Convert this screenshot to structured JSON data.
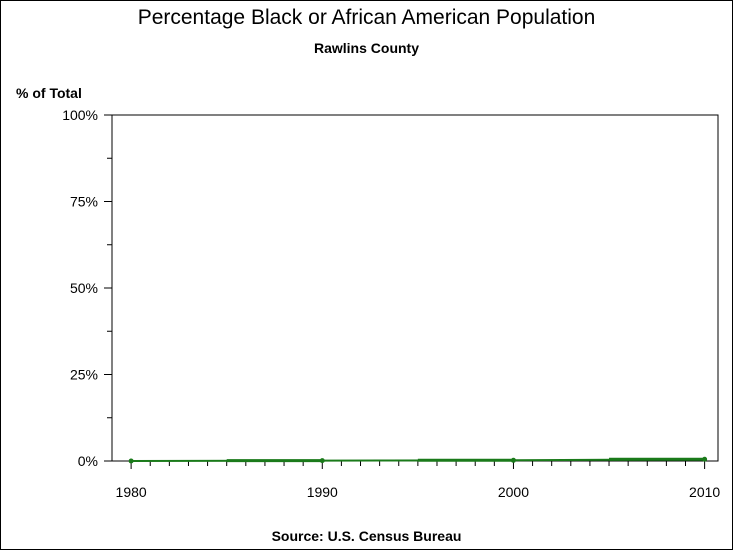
{
  "chart_data": {
    "type": "line",
    "title": "Percentage Black or African American Population",
    "subtitle": "Rawlins County",
    "ylabel": "% of Total",
    "xlabel": "",
    "source": "Source: U.S. Census Bureau",
    "x": [
      1980,
      1990,
      2000,
      2010
    ],
    "series": [
      {
        "values": [
          0.0,
          0.1,
          0.2,
          0.5
        ]
      }
    ],
    "xlim": [
      1979,
      2010.7
    ],
    "ylim": [
      0,
      100
    ],
    "x_ticks": [
      1980,
      1990,
      2000,
      2010
    ],
    "y_ticks": [
      0,
      25,
      50,
      75,
      100
    ],
    "y_tick_labels": [
      "0%",
      "25%",
      "50%",
      "75%",
      "100%"
    ],
    "grid": false,
    "legend": "none",
    "line_color": "#1a7a1a"
  }
}
